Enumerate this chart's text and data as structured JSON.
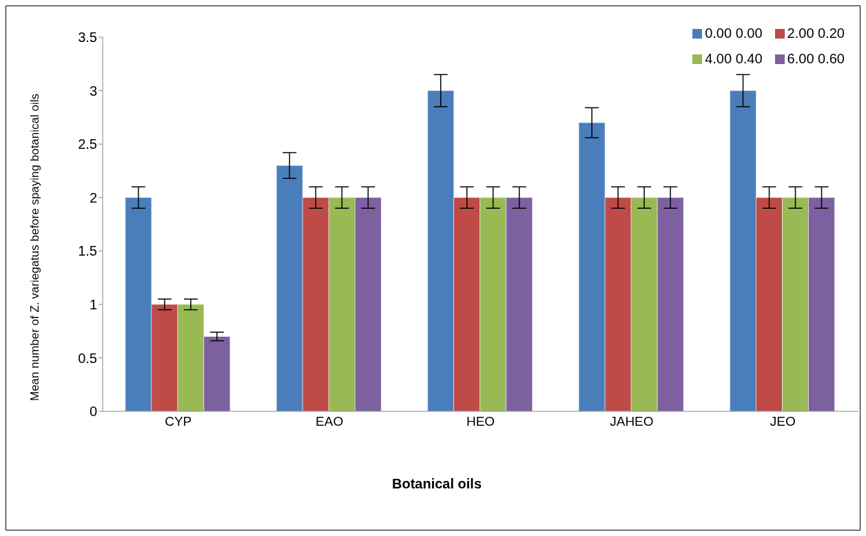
{
  "chart_data": {
    "type": "bar",
    "xlabel": "Botanical oils",
    "ylabel": "Mean number of Z. variegatus before spaying botanical oils",
    "categories": [
      "CYP",
      "EAO",
      "HEO",
      "JAHEO",
      "JEO"
    ],
    "series": [
      {
        "name": "0.00 0.00",
        "color": "#4a7ebb",
        "values": [
          2.0,
          2.3,
          3.0,
          2.7,
          3.0
        ],
        "errors": [
          0.1,
          0.12,
          0.15,
          0.14,
          0.15
        ]
      },
      {
        "name": "2.00 0.20",
        "color": "#be4b48",
        "values": [
          1.0,
          2.0,
          2.0,
          2.0,
          2.0
        ],
        "errors": [
          0.05,
          0.1,
          0.1,
          0.1,
          0.1
        ]
      },
      {
        "name": "4.00 0.40",
        "color": "#98b954",
        "values": [
          1.0,
          2.0,
          2.0,
          2.0,
          2.0
        ],
        "errors": [
          0.05,
          0.1,
          0.1,
          0.1,
          0.1
        ]
      },
      {
        "name": "6.00 0.60",
        "color": "#7d60a0",
        "values": [
          0.7,
          2.0,
          2.0,
          2.0,
          2.0
        ],
        "errors": [
          0.04,
          0.1,
          0.1,
          0.1,
          0.1
        ]
      }
    ],
    "ylim": [
      0,
      3.5
    ],
    "yticks": [
      0,
      0.5,
      1,
      1.5,
      2,
      2.5,
      3,
      3.5
    ],
    "grid": false,
    "legend": "top right"
  }
}
